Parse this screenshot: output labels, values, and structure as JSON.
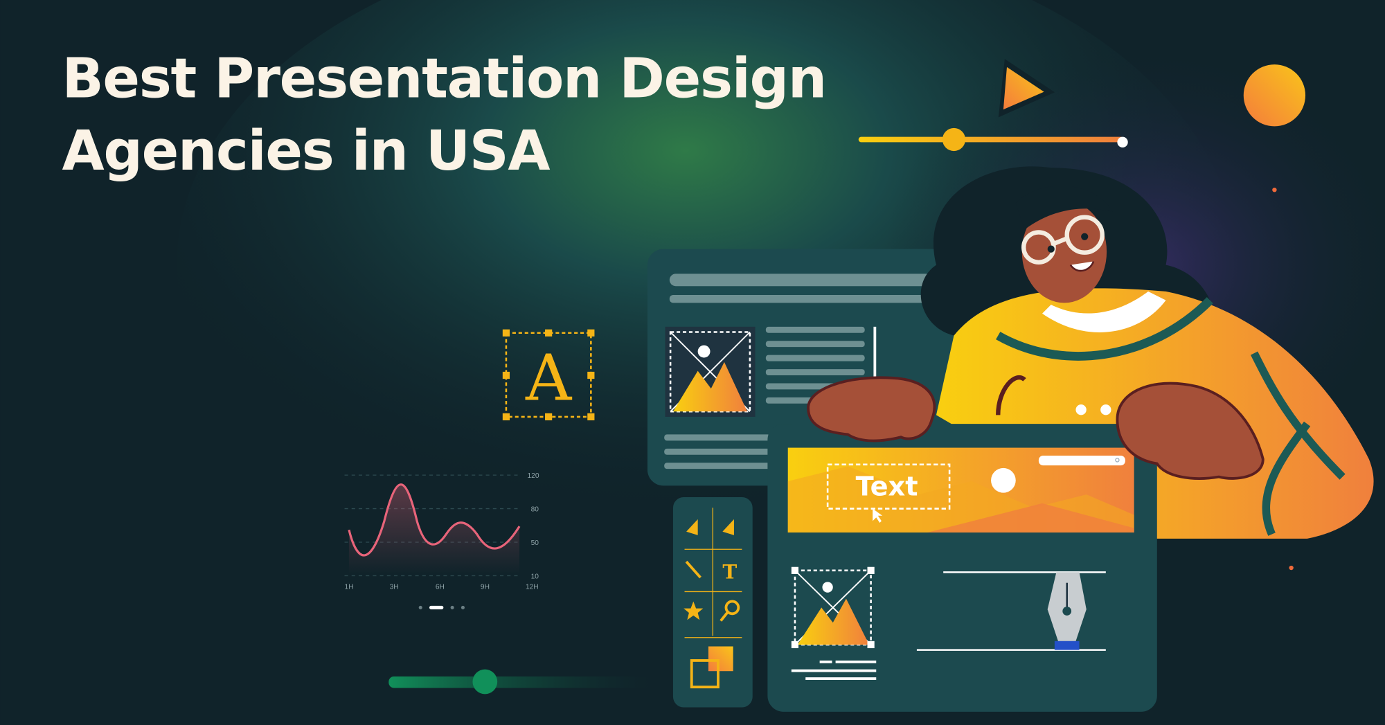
{
  "headline": {
    "line1": "Best Presentation Design",
    "line2": "Agencies in USA"
  },
  "typography_card": {
    "letter": "A"
  },
  "text_box": {
    "label": "Text"
  },
  "tool_palette": {
    "text_tool_glyph": "T"
  },
  "mini_chart": {
    "y_ticks": [
      "120",
      "80",
      "50",
      "10"
    ],
    "x_ticks": [
      "1H",
      "3H",
      "6H",
      "9H",
      "12H"
    ],
    "line_color": "#e8647a"
  },
  "sliders": {
    "top_progress": 0.36,
    "bottom_progress": 0.37
  },
  "colors": {
    "background": "#10232a",
    "accent_yellow": "#f5b416",
    "accent_orange": "#f08a3c",
    "panel": "#1c4a4f",
    "slider_green": "#11905a"
  }
}
